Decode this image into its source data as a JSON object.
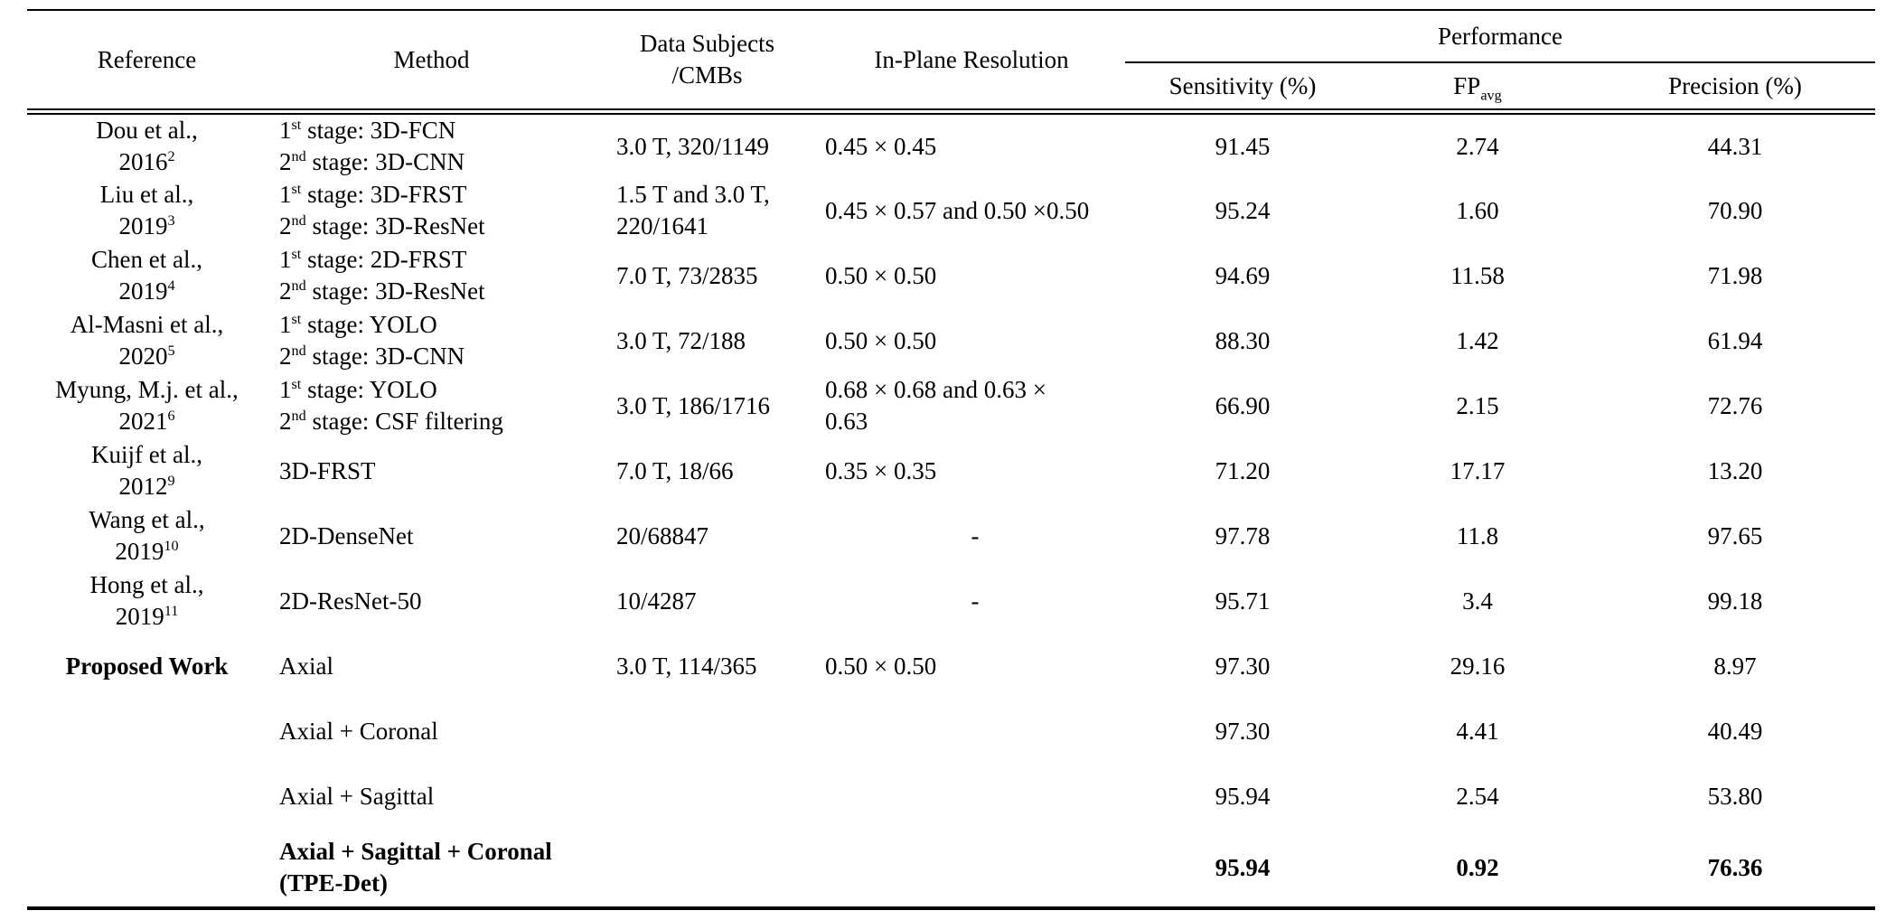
{
  "table": {
    "header": {
      "reference": "Reference",
      "method": "Method",
      "data_subjects": [
        "Data Subjects",
        "/CMBs"
      ],
      "resolution": "In-Plane Resolution",
      "performance": "Performance",
      "sensitivity": "Sensitivity (%)",
      "fp_main": "FP",
      "fp_sub": "avg",
      "precision": "Precision (%)"
    },
    "rows": [
      {
        "reference": {
          "lines": [
            [
              {
                "t": "Dou et al.,"
              }
            ],
            [
              {
                "t": "2016"
              },
              {
                "t": "2",
                "sup": true
              }
            ]
          ]
        },
        "method": {
          "lines": [
            [
              {
                "t": "1"
              },
              {
                "t": "st",
                "sup": true
              },
              {
                "t": " stage: 3D-FCN"
              }
            ],
            [
              {
                "t": "2"
              },
              {
                "t": "nd",
                "sup": true
              },
              {
                "t": " stage: 3D-CNN"
              }
            ]
          ]
        },
        "data_subjects": {
          "lines": [
            [
              {
                "t": "3.0 T, 320/1149"
              }
            ]
          ]
        },
        "resolution": {
          "lines": [
            [
              {
                "t": "0.45 × 0.45"
              }
            ]
          ]
        },
        "sensitivity": "91.45",
        "fp_avg": "2.74",
        "precision": "44.31"
      },
      {
        "reference": {
          "lines": [
            [
              {
                "t": "Liu et al.,"
              }
            ],
            [
              {
                "t": "2019"
              },
              {
                "t": "3",
                "sup": true
              }
            ]
          ]
        },
        "method": {
          "lines": [
            [
              {
                "t": "1"
              },
              {
                "t": "st",
                "sup": true
              },
              {
                "t": " stage: 3D-FRST"
              }
            ],
            [
              {
                "t": "2"
              },
              {
                "t": "nd",
                "sup": true
              },
              {
                "t": " stage: 3D-ResNet"
              }
            ]
          ]
        },
        "data_subjects": {
          "lines": [
            [
              {
                "t": "1.5 T and 3.0 T,"
              }
            ],
            [
              {
                "t": "220/1641"
              }
            ]
          ]
        },
        "resolution": {
          "lines": [
            [
              {
                "t": "0.45 × 0.57 and 0.50 ×0.50"
              }
            ]
          ]
        },
        "sensitivity": "95.24",
        "fp_avg": "1.60",
        "precision": "70.90"
      },
      {
        "reference": {
          "lines": [
            [
              {
                "t": "Chen et al.,"
              }
            ],
            [
              {
                "t": "2019"
              },
              {
                "t": "4",
                "sup": true
              }
            ]
          ]
        },
        "method": {
          "lines": [
            [
              {
                "t": "1"
              },
              {
                "t": "st",
                "sup": true
              },
              {
                "t": " stage: 2D-FRST"
              }
            ],
            [
              {
                "t": "2"
              },
              {
                "t": "nd",
                "sup": true
              },
              {
                "t": " stage: 3D-ResNet"
              }
            ]
          ]
        },
        "data_subjects": {
          "lines": [
            [
              {
                "t": "7.0 T, 73/2835"
              }
            ]
          ]
        },
        "resolution": {
          "lines": [
            [
              {
                "t": "0.50 × 0.50"
              }
            ]
          ]
        },
        "sensitivity": "94.69",
        "fp_avg": "11.58",
        "precision": "71.98"
      },
      {
        "reference": {
          "lines": [
            [
              {
                "t": "Al-Masni et al.,"
              }
            ],
            [
              {
                "t": "2020"
              },
              {
                "t": "5",
                "sup": true
              }
            ]
          ]
        },
        "method": {
          "lines": [
            [
              {
                "t": "1"
              },
              {
                "t": "st",
                "sup": true
              },
              {
                "t": " stage: YOLO"
              }
            ],
            [
              {
                "t": "2"
              },
              {
                "t": "nd",
                "sup": true
              },
              {
                "t": " stage: 3D-CNN"
              }
            ]
          ]
        },
        "data_subjects": {
          "lines": [
            [
              {
                "t": "3.0 T, 72/188"
              }
            ]
          ]
        },
        "resolution": {
          "lines": [
            [
              {
                "t": "0.50 × 0.50"
              }
            ]
          ]
        },
        "sensitivity": "88.30",
        "fp_avg": "1.42",
        "precision": "61.94"
      },
      {
        "reference": {
          "lines": [
            [
              {
                "t": "Myung, M.j. et al.,"
              }
            ],
            [
              {
                "t": "2021"
              },
              {
                "t": "6",
                "sup": true
              }
            ]
          ]
        },
        "method": {
          "lines": [
            [
              {
                "t": "1"
              },
              {
                "t": "st",
                "sup": true
              },
              {
                "t": " stage: YOLO"
              }
            ],
            [
              {
                "t": "2"
              },
              {
                "t": "nd",
                "sup": true
              },
              {
                "t": " stage: CSF filtering"
              }
            ]
          ]
        },
        "data_subjects": {
          "lines": [
            [
              {
                "t": "3.0 T, 186/1716"
              }
            ]
          ]
        },
        "resolution": {
          "lines": [
            [
              {
                "t": "0.68 × 0.68 and 0.63 ×"
              }
            ],
            [
              {
                "t": "0.63"
              }
            ]
          ]
        },
        "sensitivity": "66.90",
        "fp_avg": "2.15",
        "precision": "72.76"
      },
      {
        "reference": {
          "lines": [
            [
              {
                "t": "Kuijf et al.,"
              }
            ],
            [
              {
                "t": "2012"
              },
              {
                "t": "9",
                "sup": true
              }
            ]
          ]
        },
        "method": {
          "lines": [
            [
              {
                "t": "3D-FRST"
              }
            ]
          ]
        },
        "data_subjects": {
          "lines": [
            [
              {
                "t": "7.0 T, 18/66"
              }
            ]
          ]
        },
        "resolution": {
          "lines": [
            [
              {
                "t": "0.35 × 0.35"
              }
            ]
          ]
        },
        "sensitivity": "71.20",
        "fp_avg": "17.17",
        "precision": "13.20"
      },
      {
        "reference": {
          "lines": [
            [
              {
                "t": "Wang et al.,"
              }
            ],
            [
              {
                "t": "2019"
              },
              {
                "t": "10",
                "sup": true
              }
            ]
          ]
        },
        "method": {
          "lines": [
            [
              {
                "t": "2D-DenseNet"
              }
            ]
          ]
        },
        "data_subjects": {
          "lines": [
            [
              {
                "t": "20/68847"
              }
            ]
          ]
        },
        "resolution": {
          "align": "center",
          "lines": [
            [
              {
                "t": "-"
              }
            ]
          ]
        },
        "sensitivity": "97.78",
        "fp_avg": "11.8",
        "precision": "97.65"
      },
      {
        "reference": {
          "lines": [
            [
              {
                "t": "Hong et al.,"
              }
            ],
            [
              {
                "t": "2019"
              },
              {
                "t": "11",
                "sup": true
              }
            ]
          ]
        },
        "method": {
          "lines": [
            [
              {
                "t": "2D-ResNet-50"
              }
            ]
          ]
        },
        "data_subjects": {
          "lines": [
            [
              {
                "t": "10/4287"
              }
            ]
          ]
        },
        "resolution": {
          "align": "center",
          "lines": [
            [
              {
                "t": "-"
              }
            ]
          ]
        },
        "sensitivity": "95.71",
        "fp_avg": "3.4",
        "precision": "99.18"
      },
      {
        "reference": {
          "bold": true,
          "lines": [
            [
              {
                "t": "Proposed Work"
              }
            ]
          ]
        },
        "method": {
          "lines": [
            [
              {
                "t": "Axial"
              }
            ]
          ]
        },
        "data_subjects": {
          "lines": [
            [
              {
                "t": "3.0 T, 114/365"
              }
            ]
          ]
        },
        "resolution": {
          "lines": [
            [
              {
                "t": "0.50 × 0.50"
              }
            ]
          ]
        },
        "sensitivity": "97.30",
        "fp_avg": "29.16",
        "precision": "8.97"
      },
      {
        "method": {
          "lines": [
            [
              {
                "t": "Axial + Coronal"
              }
            ]
          ]
        },
        "sensitivity": "97.30",
        "fp_avg": "4.41",
        "precision": "40.49"
      },
      {
        "method": {
          "lines": [
            [
              {
                "t": "Axial + Sagittal"
              }
            ]
          ]
        },
        "sensitivity": "95.94",
        "fp_avg": "2.54",
        "precision": "53.80"
      },
      {
        "tall": true,
        "bold_numbers": true,
        "method": {
          "bold": true,
          "lines": [
            [
              {
                "t": "Axial + Sagittal + Coronal"
              }
            ],
            [
              {
                "t": "(TPE-Det)"
              }
            ]
          ]
        },
        "sensitivity": "95.94",
        "fp_avg": "0.92",
        "precision": "76.36"
      }
    ]
  }
}
